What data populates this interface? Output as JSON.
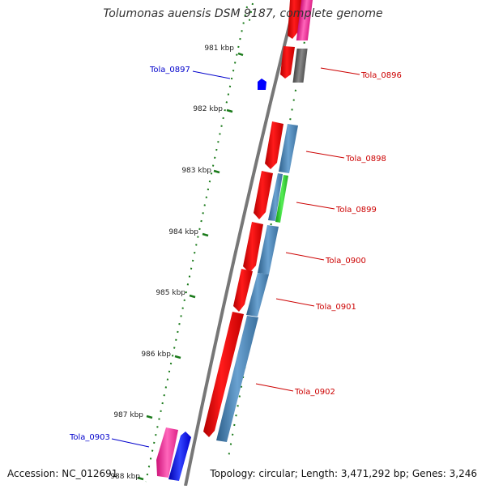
{
  "title": "Tolumonas auensis DSM 9187, complete genome",
  "accession": "Accession: NC_012691",
  "summary": "Topology: circular; Length: 3,471,292 bp; Genes: 3,246",
  "colors": {
    "backbone": "#777777",
    "scale_ticks": "#1a7a1a",
    "forward_gene_label": "#cc0000",
    "reverse_gene_label": "#0000cc",
    "red_gene": "#ff0000",
    "pink_gene": "#ff3399",
    "gray_gene": "#666666",
    "steelblue_gene": "#4682b4",
    "green_gene": "#33cc33",
    "blue_gene": "#0000ff"
  },
  "scale_labels": [
    "981 kbp",
    "982 kbp",
    "983 kbp",
    "984 kbp",
    "985 kbp",
    "986 kbp",
    "987 kbp",
    "988 kbp"
  ],
  "gene_labels": [
    {
      "text": "Tola_0896",
      "strand": "forward"
    },
    {
      "text": "Tola_0897",
      "strand": "reverse"
    },
    {
      "text": "Tola_0898",
      "strand": "forward"
    },
    {
      "text": "Tola_0899",
      "strand": "forward"
    },
    {
      "text": "Tola_0900",
      "strand": "forward"
    },
    {
      "text": "Tola_0901",
      "strand": "forward"
    },
    {
      "text": "Tola_0902",
      "strand": "forward"
    },
    {
      "text": "Tola_0903",
      "strand": "reverse"
    }
  ]
}
